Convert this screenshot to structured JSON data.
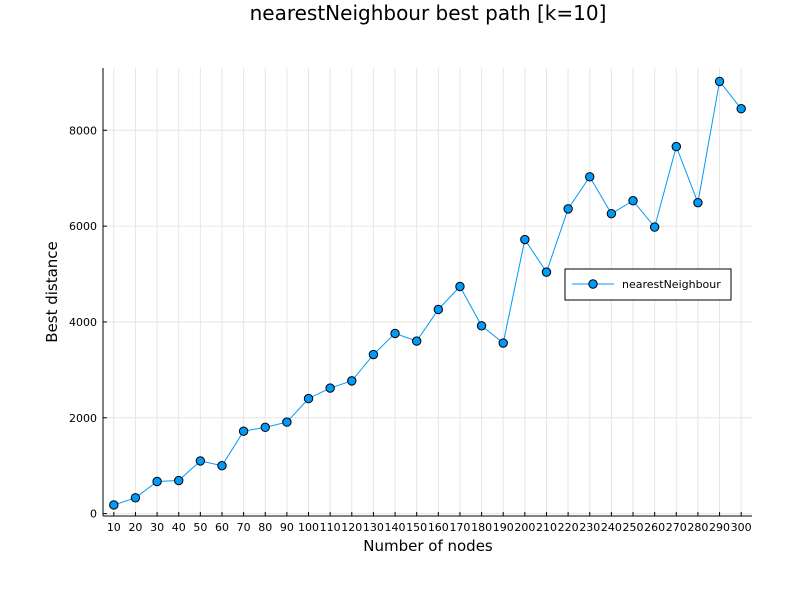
{
  "chart_data": {
    "type": "line",
    "title": "nearestNeighbour best path [k=10]",
    "xlabel": "Number of nodes",
    "ylabel": "Best distance",
    "x": [
      10,
      20,
      30,
      40,
      50,
      60,
      70,
      80,
      90,
      100,
      110,
      120,
      130,
      140,
      150,
      160,
      170,
      180,
      190,
      200,
      210,
      220,
      230,
      240,
      250,
      260,
      270,
      280,
      290,
      300
    ],
    "xlim": [
      5,
      305
    ],
    "ylim": [
      -50,
      9300
    ],
    "yticks": [
      0,
      2000,
      4000,
      6000,
      8000
    ],
    "grid": true,
    "legend_position": "right",
    "series": [
      {
        "name": "nearestNeighbour",
        "color": "#009AF9",
        "marker": "circle",
        "values": [
          180,
          330,
          670,
          690,
          1100,
          1000,
          1720,
          1800,
          1910,
          2400,
          2620,
          2770,
          3320,
          3760,
          3600,
          4260,
          4740,
          3920,
          3560,
          5720,
          5040,
          6360,
          7030,
          6260,
          6530,
          5980,
          7660,
          6490,
          9020,
          8450
        ]
      }
    ]
  }
}
